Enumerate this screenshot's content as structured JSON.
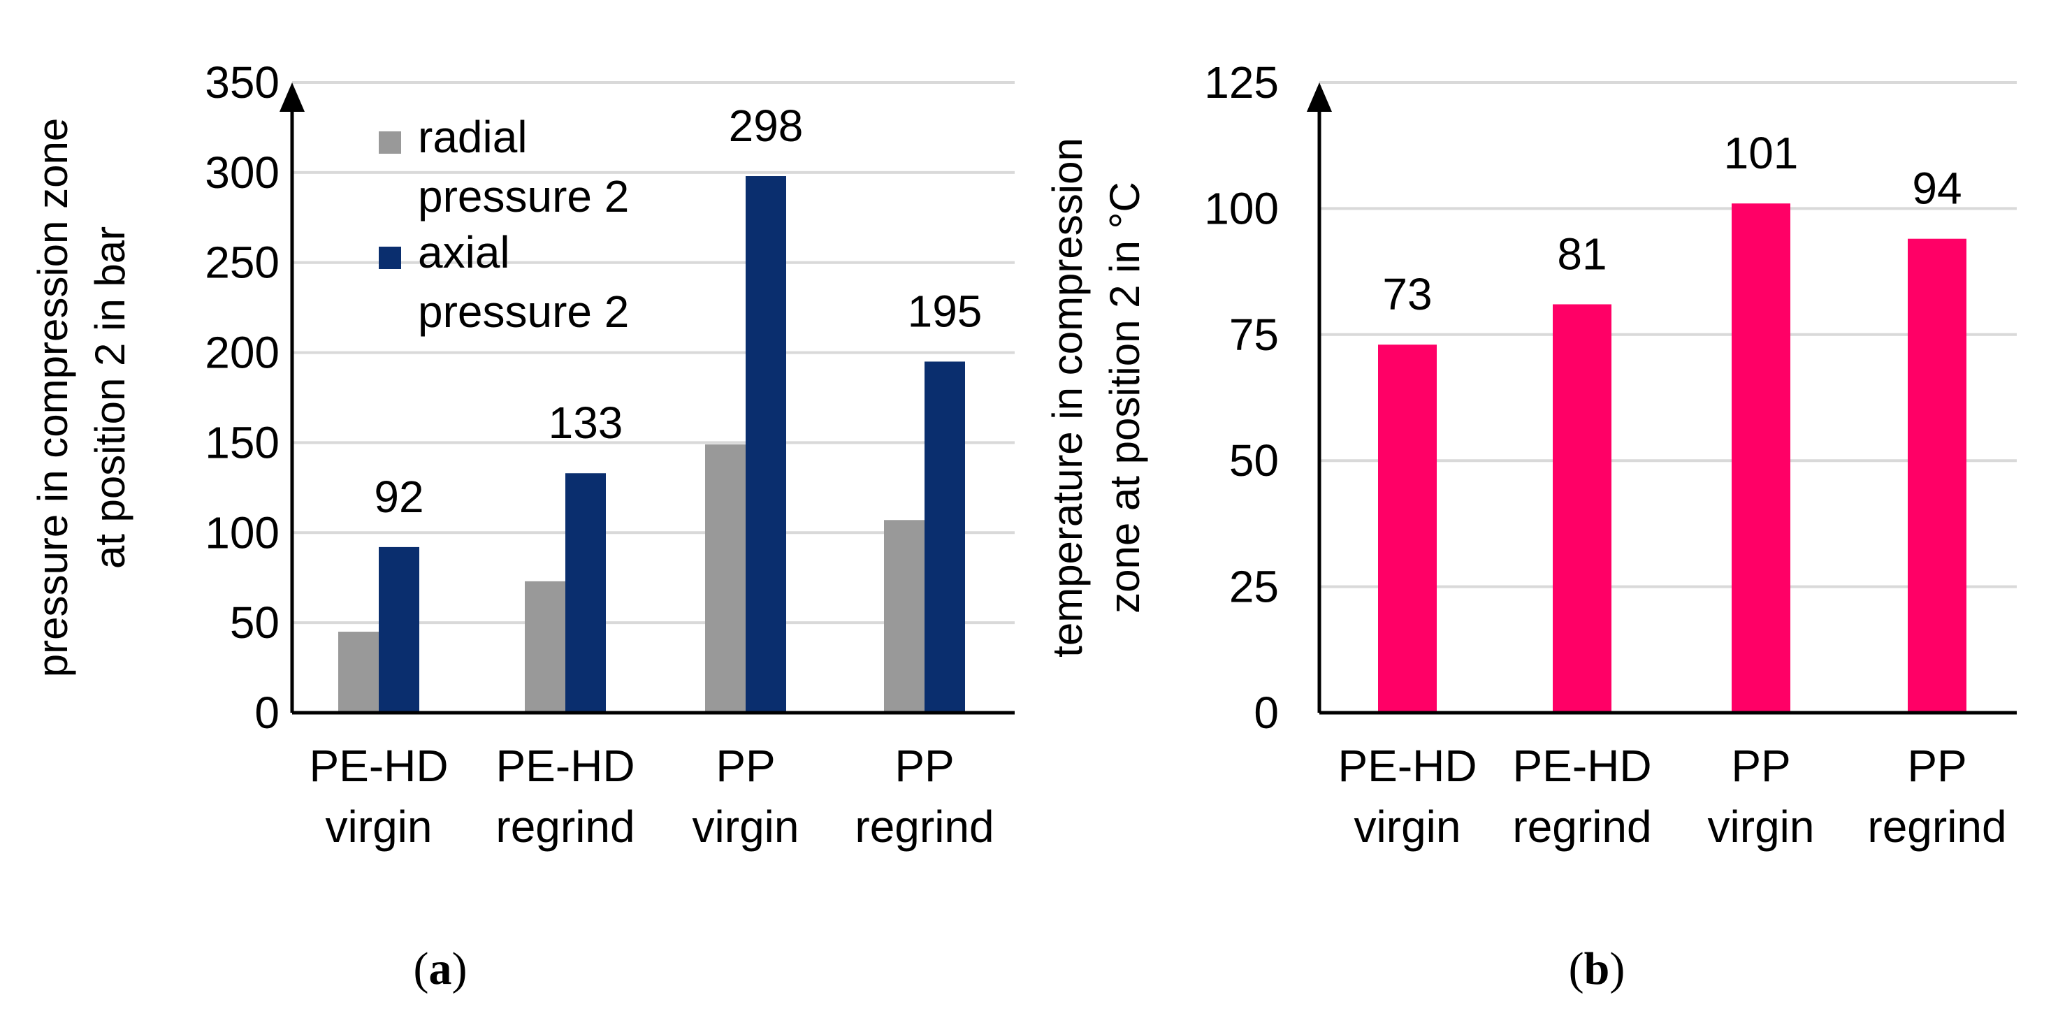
{
  "chart_data": [
    {
      "id": "a",
      "type": "bar",
      "categories": [
        [
          "PE-HD",
          "virgin"
        ],
        [
          "PE-HD",
          "regrind"
        ],
        [
          "PP",
          "virgin"
        ],
        [
          "PP",
          "regrind"
        ]
      ],
      "series": [
        {
          "name": [
            "radial",
            "pressure 2"
          ],
          "color": "#999999",
          "values": [
            45,
            73,
            149,
            107
          ],
          "show_labels": false
        },
        {
          "name": [
            "axial",
            "pressure 2"
          ],
          "color": "#0a2e6e",
          "values": [
            92,
            133,
            298,
            195
          ],
          "show_labels": true
        }
      ],
      "ylabel": [
        "pressure in compression zone",
        "at position 2 in bar"
      ],
      "xlabel": "",
      "ylim": [
        0,
        350
      ],
      "yticks": [
        0,
        50,
        100,
        150,
        200,
        250,
        300,
        350
      ],
      "grid": true,
      "legend": "top-left",
      "panel_label": {
        "open": "(",
        "letter": "a",
        "close": ")"
      }
    },
    {
      "id": "b",
      "type": "bar",
      "categories": [
        [
          "PE-HD",
          "virgin"
        ],
        [
          "PE-HD",
          "regrind"
        ],
        [
          "PP",
          "virgin"
        ],
        [
          "PP",
          "regrind"
        ]
      ],
      "series": [
        {
          "name": [
            "temperature"
          ],
          "color": "#ff0066",
          "values": [
            73,
            81,
            101,
            94
          ],
          "show_labels": true
        }
      ],
      "ylabel": [
        "temperature in compression",
        "zone at position 2 in °C"
      ],
      "xlabel": "",
      "ylim": [
        0,
        125
      ],
      "yticks": [
        0,
        25,
        50,
        75,
        100,
        125
      ],
      "grid": true,
      "legend": "none",
      "panel_label": {
        "open": "(",
        "letter": "b",
        "close": ")"
      }
    }
  ]
}
